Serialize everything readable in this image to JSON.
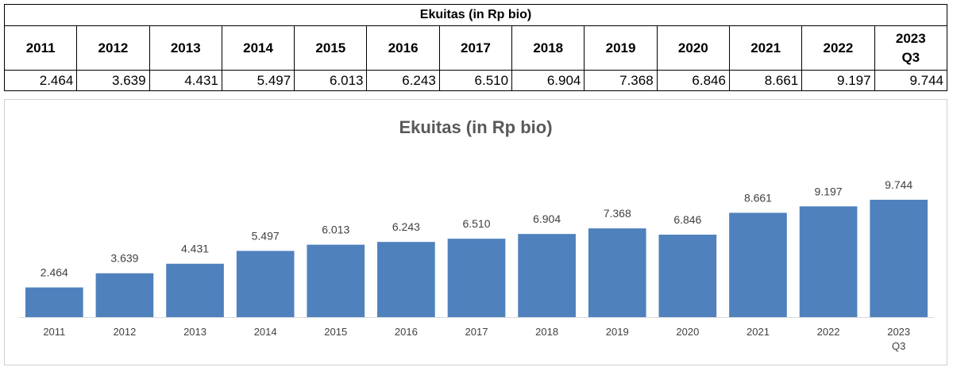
{
  "table": {
    "title": "Ekuitas (in Rp bio)",
    "years": [
      "2011",
      "2012",
      "2013",
      "2014",
      "2015",
      "2016",
      "2017",
      "2018",
      "2019",
      "2020",
      "2021",
      "2022",
      "2023\nQ3"
    ],
    "values": [
      "2.464",
      "3.639",
      "4.431",
      "5.497",
      "6.013",
      "6.243",
      "6.510",
      "6.904",
      "7.368",
      "6.846",
      "8.661",
      "9.197",
      "9.744"
    ]
  },
  "chart_data": {
    "type": "bar",
    "title": "Ekuitas (in Rp bio)",
    "categories": [
      "2011",
      "2012",
      "2013",
      "2014",
      "2015",
      "2016",
      "2017",
      "2018",
      "2019",
      "2020",
      "2021",
      "2022",
      "2023\nQ3"
    ],
    "values": [
      2.464,
      3.639,
      4.431,
      5.497,
      6.013,
      6.243,
      6.51,
      6.904,
      7.368,
      6.846,
      8.661,
      9.197,
      9.744
    ],
    "value_labels": [
      "2.464",
      "3.639",
      "4.431",
      "5.497",
      "6.013",
      "6.243",
      "6.510",
      "6.904",
      "7.368",
      "6.846",
      "8.661",
      "9.197",
      "9.744"
    ],
    "xlabel": "",
    "ylabel": "",
    "ylim": [
      0,
      10
    ],
    "grid": false,
    "legend": "none",
    "bar_color": "#4F81BD"
  }
}
